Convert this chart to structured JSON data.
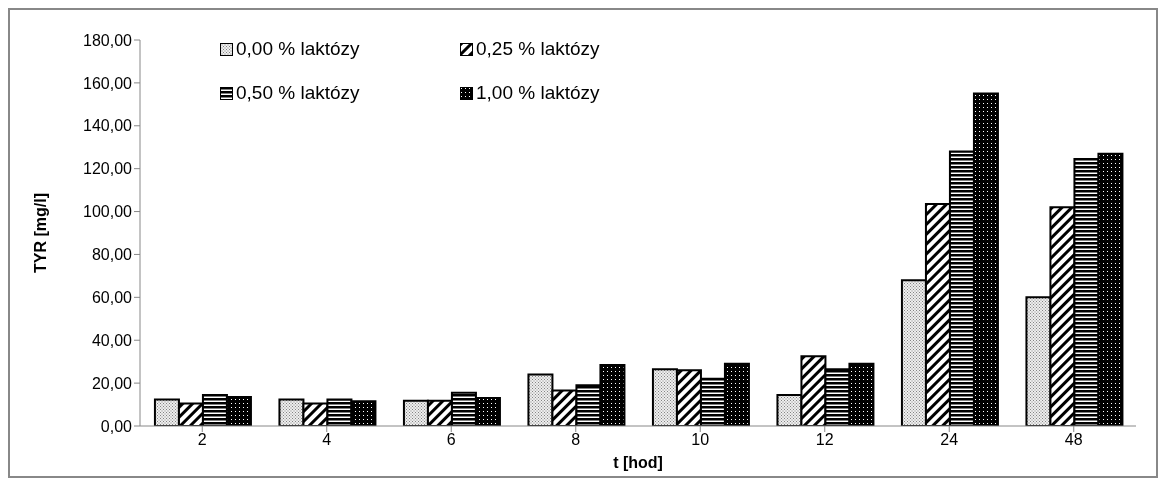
{
  "chart_data": {
    "type": "bar",
    "xlabel": "t [hod]",
    "ylabel": "TYR [mg/l]",
    "categories": [
      "2",
      "4",
      "6",
      "8",
      "10",
      "12",
      "24",
      "48"
    ],
    "series": [
      {
        "name": "0,00 % laktózy",
        "color": "#000000",
        "values": [
          12.3,
          12.3,
          11.8,
          24,
          26.5,
          14.5,
          68,
          60
        ]
      },
      {
        "name": "0,25 % laktózy",
        "color": "#000000",
        "values": [
          10.5,
          10.5,
          11.8,
          16.5,
          26,
          32.5,
          103.5,
          102
        ]
      },
      {
        "name": "0,50 % laktózy",
        "color": "#000000",
        "values": [
          14.5,
          12.3,
          15.5,
          19,
          22,
          26.5,
          128,
          124.5
        ]
      },
      {
        "name": "1,00 % laktózy",
        "color": "#000000",
        "values": [
          13.5,
          11.5,
          13,
          28.5,
          29,
          29,
          155,
          127
        ]
      }
    ],
    "ylim": [
      0,
      180
    ],
    "yticks": [
      {
        "value": 0,
        "label": "0,00"
      },
      {
        "value": 20,
        "label": "20,00"
      },
      {
        "value": 40,
        "label": "40,00"
      },
      {
        "value": 60,
        "label": "60,00"
      },
      {
        "value": 80,
        "label": "80,00"
      },
      {
        "value": 100,
        "label": "100,00"
      },
      {
        "value": 120,
        "label": "120,00"
      },
      {
        "value": 140,
        "label": "140,00"
      },
      {
        "value": 160,
        "label": "160,00"
      },
      {
        "value": 180,
        "label": "180,00"
      }
    ],
    "legend": "top left"
  }
}
